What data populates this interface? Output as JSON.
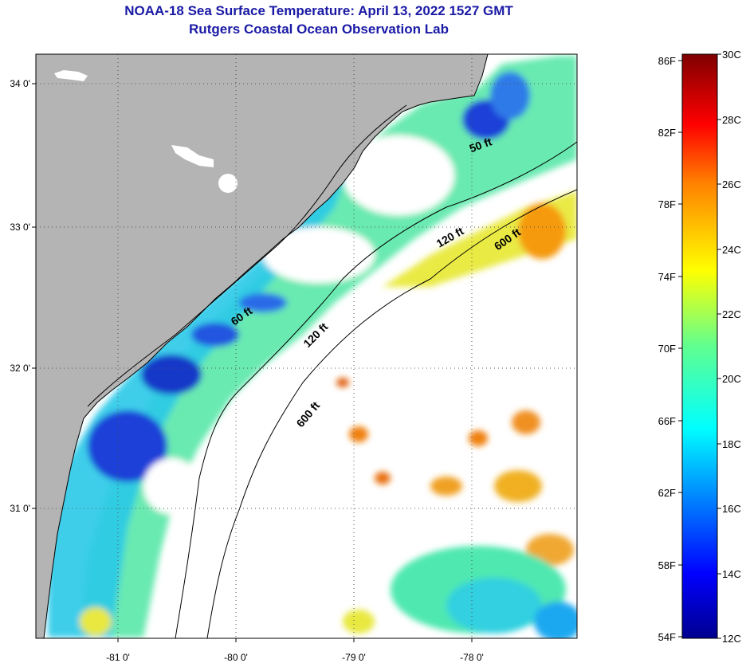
{
  "header": {
    "title": "NOAA-18 Sea Surface Temperature:  April 13, 2022 1527 GMT",
    "subtitle": "Rutgers Coastal Ocean Observation Lab"
  },
  "map": {
    "lat_labels": [
      "34 0'",
      "33 0'",
      "32 0'",
      "31 0'"
    ],
    "lon_labels": [
      "-81 0'",
      "-80 0'",
      "-79 0'",
      "-78 0'"
    ],
    "contours": [
      {
        "label": "60 ft"
      },
      {
        "label": "120 ft"
      },
      {
        "label": "600 ft"
      },
      {
        "label": "50 ft"
      },
      {
        "label": "120 ft"
      },
      {
        "label": "600 ft"
      }
    ],
    "land_color": "#b4b4b4",
    "ocean_nodata_color": "#ffffff"
  },
  "colorbar": {
    "fahrenheit_labels": [
      "86F",
      "82F",
      "78F",
      "74F",
      "70F",
      "66F",
      "62F",
      "58F",
      "54F"
    ],
    "celsius_labels": [
      "30C",
      "28C",
      "26C",
      "24C",
      "22C",
      "20C",
      "18C",
      "16C",
      "14C",
      "12C"
    ],
    "colors": [
      "#7f0000",
      "#ff0000",
      "#ff8000",
      "#ffff00",
      "#80ff80",
      "#00ffff",
      "#0080ff",
      "#0000ff",
      "#00008f"
    ]
  }
}
